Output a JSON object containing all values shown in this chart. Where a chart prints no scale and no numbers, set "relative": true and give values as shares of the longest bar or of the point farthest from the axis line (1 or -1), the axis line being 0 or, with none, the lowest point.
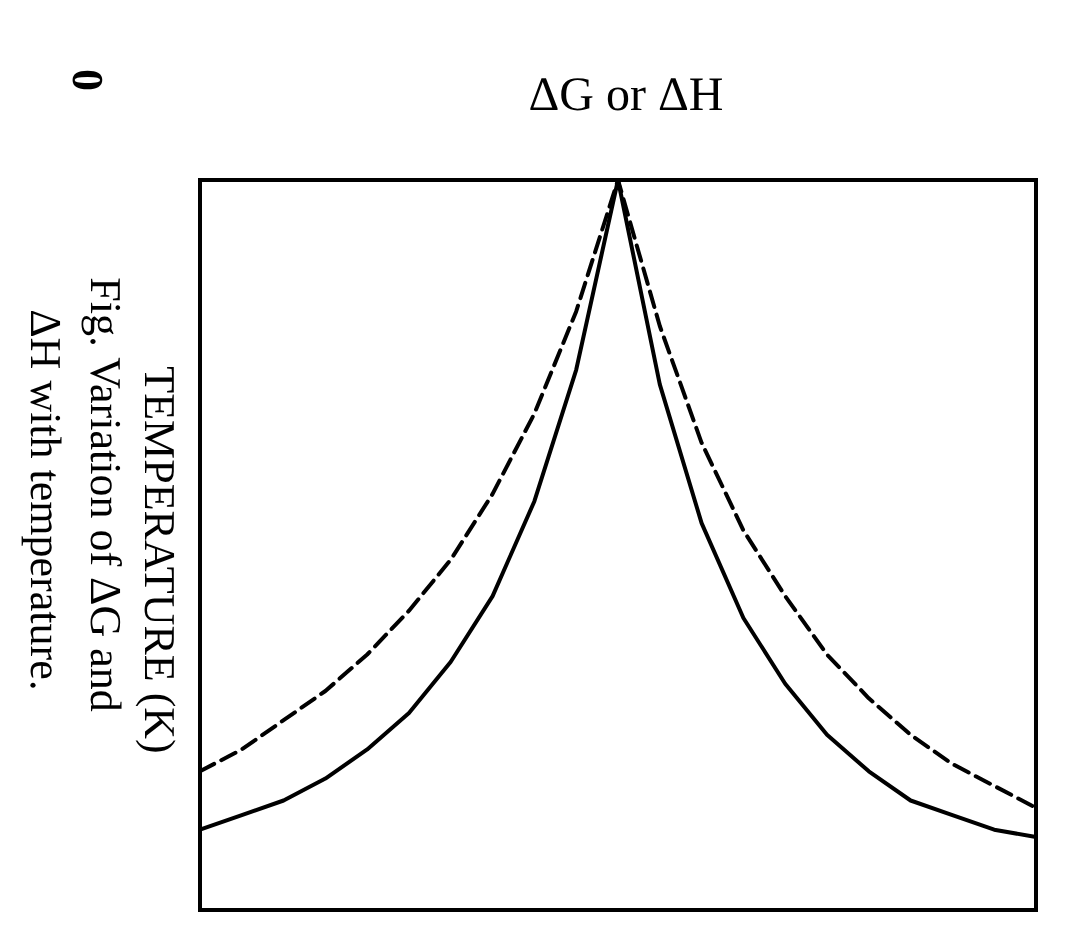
{
  "chart_data": {
    "type": "line",
    "xlabel": "ΔG or ΔH",
    "ylabel": "TEMPERATURE (K)",
    "annotations": [
      "0",
      "Fig. Variation of ΔG and ΔH with temperature."
    ],
    "categories": [
      null,
      null,
      null,
      null,
      null,
      null,
      null,
      null,
      null,
      null,
      null,
      null,
      null,
      null,
      null,
      null,
      null,
      null,
      null,
      null,
      null
    ],
    "relative": true,
    "grid": false,
    "marker": "none",
    "series": [
      {
        "color": "#000000",
        "line_style": "solid",
        "values": [
          0.11,
          0.13,
          0.15,
          0.18,
          0.22,
          0.27,
          0.34,
          0.43,
          0.56,
          0.74,
          1.0,
          0.72,
          0.53,
          0.4,
          0.31,
          0.24,
          0.19,
          0.15,
          0.13,
          0.11,
          0.1
        ]
      },
      {
        "color": "#000000",
        "line_style": "dashed",
        "values": [
          0.19,
          0.22,
          0.26,
          0.3,
          0.35,
          0.41,
          0.48,
          0.57,
          0.68,
          0.82,
          1.0,
          0.8,
          0.64,
          0.52,
          0.43,
          0.35,
          0.29,
          0.24,
          0.2,
          0.17,
          0.14
        ]
      }
    ]
  }
}
